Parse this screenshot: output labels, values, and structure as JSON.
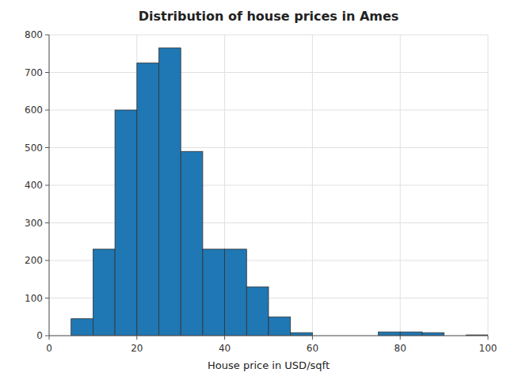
{
  "chart_data": {
    "type": "histogram",
    "title": "Distribution of house prices in Ames",
    "xlabel": "House price in USD/sqft",
    "bins": [
      0,
      5,
      10,
      15,
      20,
      25,
      30,
      35,
      40,
      45,
      50,
      55,
      60,
      65,
      70,
      75,
      80,
      85,
      90,
      95,
      100
    ],
    "values": [
      0,
      45,
      230,
      600,
      725,
      765,
      490,
      230,
      230,
      130,
      50,
      8,
      0,
      0,
      0,
      10,
      10,
      8,
      0,
      2
    ],
    "color": "#1f77b4",
    "xlim": [
      0,
      100
    ],
    "xticks": [
      0,
      20,
      40,
      60,
      80,
      100
    ],
    "ylim": [
      0,
      800
    ],
    "yticks": [
      0,
      100,
      200,
      300,
      400,
      500,
      600,
      700,
      800
    ],
    "grid": true
  }
}
